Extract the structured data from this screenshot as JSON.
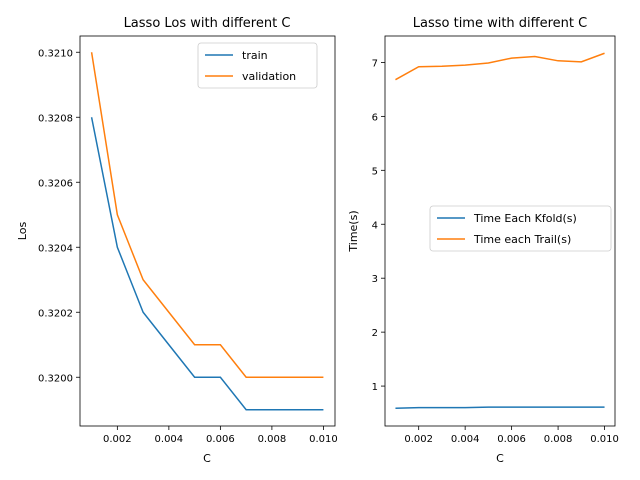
{
  "chart_data": [
    {
      "type": "line",
      "title": "Lasso Los with different C",
      "xlabel": "C",
      "ylabel": "Los",
      "x": [
        0.001,
        0.002,
        0.003,
        0.004,
        0.005,
        0.006,
        0.007,
        0.008,
        0.009,
        0.01
      ],
      "xlim": [
        0.00055,
        0.01045
      ],
      "ylim": [
        0.31985,
        0.32105
      ],
      "xticks": [
        0.002,
        0.004,
        0.006,
        0.008,
        0.01
      ],
      "xtick_labels": [
        "0.002",
        "0.004",
        "0.006",
        "0.008",
        "0.010"
      ],
      "yticks": [
        0.32,
        0.3202,
        0.3204,
        0.3206,
        0.3208,
        0.321
      ],
      "ytick_labels": [
        "0.3200",
        "0.3202",
        "0.3204",
        "0.3206",
        "0.3208",
        "0.3210"
      ],
      "legend_position": "top-right",
      "series": [
        {
          "name": "train",
          "color": "#1f77b4",
          "values": [
            0.3208,
            0.3204,
            0.3202,
            0.3201,
            0.32,
            0.32,
            0.3199,
            0.3199,
            0.3199,
            0.3199
          ]
        },
        {
          "name": "validation",
          "color": "#ff7f0e",
          "values": [
            0.321,
            0.3205,
            0.3203,
            0.3202,
            0.3201,
            0.3201,
            0.32,
            0.32,
            0.32,
            0.32
          ]
        }
      ]
    },
    {
      "type": "line",
      "title": "Lasso time with different C",
      "xlabel": "C",
      "ylabel": "Time(s)",
      "x": [
        0.001,
        0.002,
        0.003,
        0.004,
        0.005,
        0.006,
        0.007,
        0.008,
        0.009,
        0.01
      ],
      "xlim": [
        0.00055,
        0.01045
      ],
      "ylim": [
        0.26,
        7.49
      ],
      "xticks": [
        0.002,
        0.004,
        0.006,
        0.008,
        0.01
      ],
      "xtick_labels": [
        "0.002",
        "0.004",
        "0.006",
        "0.008",
        "0.010"
      ],
      "yticks": [
        1,
        2,
        3,
        4,
        5,
        6,
        7
      ],
      "ytick_labels": [
        "1",
        "2",
        "3",
        "4",
        "5",
        "6",
        "7"
      ],
      "legend_position": "center-right",
      "series": [
        {
          "name": "Time Each Kfold(s)",
          "color": "#1f77b4",
          "values": [
            0.59,
            0.6,
            0.6,
            0.6,
            0.61,
            0.61,
            0.61,
            0.61,
            0.61,
            0.61
          ]
        },
        {
          "name": "Time each Trail(s)",
          "color": "#ff7f0e",
          "values": [
            6.68,
            6.92,
            6.93,
            6.95,
            6.99,
            7.08,
            7.11,
            7.03,
            7.01,
            7.17
          ]
        }
      ]
    }
  ]
}
